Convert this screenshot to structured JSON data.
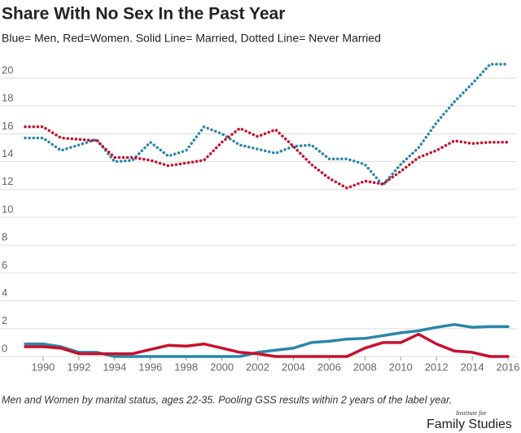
{
  "chart_data": {
    "type": "line",
    "title": "Share With No Sex In the Past Year",
    "subtitle": "Blue= Men, Red=Women. Solid Line= Married, Dotted Line= Never Married",
    "note": "Men and Women by marital status, ages 22-35. Pooling GSS results within 2 years of the label year.",
    "logo_small": "Institute for",
    "logo_big": "Family Studies",
    "x": [
      1989,
      1990,
      1991,
      1992,
      1993,
      1994,
      1995,
      1996,
      1997,
      1998,
      1999,
      2000,
      2001,
      2002,
      2003,
      2004,
      2005,
      2006,
      2007,
      2008,
      2009,
      2010,
      2011,
      2012,
      2013,
      2014,
      2015,
      2016
    ],
    "series": [
      {
        "color": "#2b87a8",
        "dash": "dotted",
        "values": [
          15.7,
          15.7,
          14.8,
          15.2,
          15.6,
          14.0,
          14.1,
          15.4,
          14.4,
          14.8,
          16.5,
          16.0,
          15.2,
          14.9,
          14.6,
          15.1,
          15.2,
          14.2,
          14.2,
          13.8,
          12.3,
          13.8,
          15.0,
          16.8,
          18.3,
          19.6,
          21.0,
          21.0
        ]
      },
      {
        "color": "#c8102e",
        "dash": "dotted",
        "values": [
          16.5,
          16.5,
          15.7,
          15.6,
          15.5,
          14.3,
          14.3,
          14.1,
          13.7,
          13.9,
          14.1,
          15.4,
          16.4,
          15.8,
          16.3,
          15.1,
          13.8,
          12.8,
          12.1,
          12.6,
          12.4,
          13.3,
          14.3,
          14.8,
          15.5,
          15.3,
          15.4,
          15.4
        ]
      },
      {
        "color": "#2b87a8",
        "dash": "solid",
        "values": [
          0.9,
          0.9,
          0.7,
          0.3,
          0.3,
          0,
          0,
          0,
          0,
          0,
          0,
          0,
          0,
          0.3,
          0.45,
          0.6,
          1.0,
          1.1,
          1.25,
          1.3,
          1.5,
          1.7,
          1.85,
          2.1,
          2.3,
          2.1,
          2.15,
          2.15
        ]
      },
      {
        "color": "#c8102e",
        "dash": "solid",
        "values": [
          0.7,
          0.7,
          0.6,
          0.2,
          0.2,
          0.2,
          0.2,
          0.5,
          0.8,
          0.75,
          0.9,
          0.6,
          0.3,
          0.2,
          0,
          0,
          0,
          0,
          0,
          0.6,
          1.0,
          1.0,
          1.6,
          0.9,
          0.4,
          0.3,
          0,
          0
        ]
      }
    ],
    "xlim": [
      1988.5,
      2016.5
    ],
    "xticks": [
      1990,
      1992,
      1994,
      1996,
      1998,
      2000,
      2002,
      2004,
      2006,
      2008,
      2010,
      2012,
      2014,
      2016
    ],
    "ylim": [
      0,
      21.2
    ],
    "yticks": [
      0,
      2,
      4,
      6,
      8,
      10,
      12,
      14,
      16,
      18,
      20
    ],
    "grid": true
  }
}
